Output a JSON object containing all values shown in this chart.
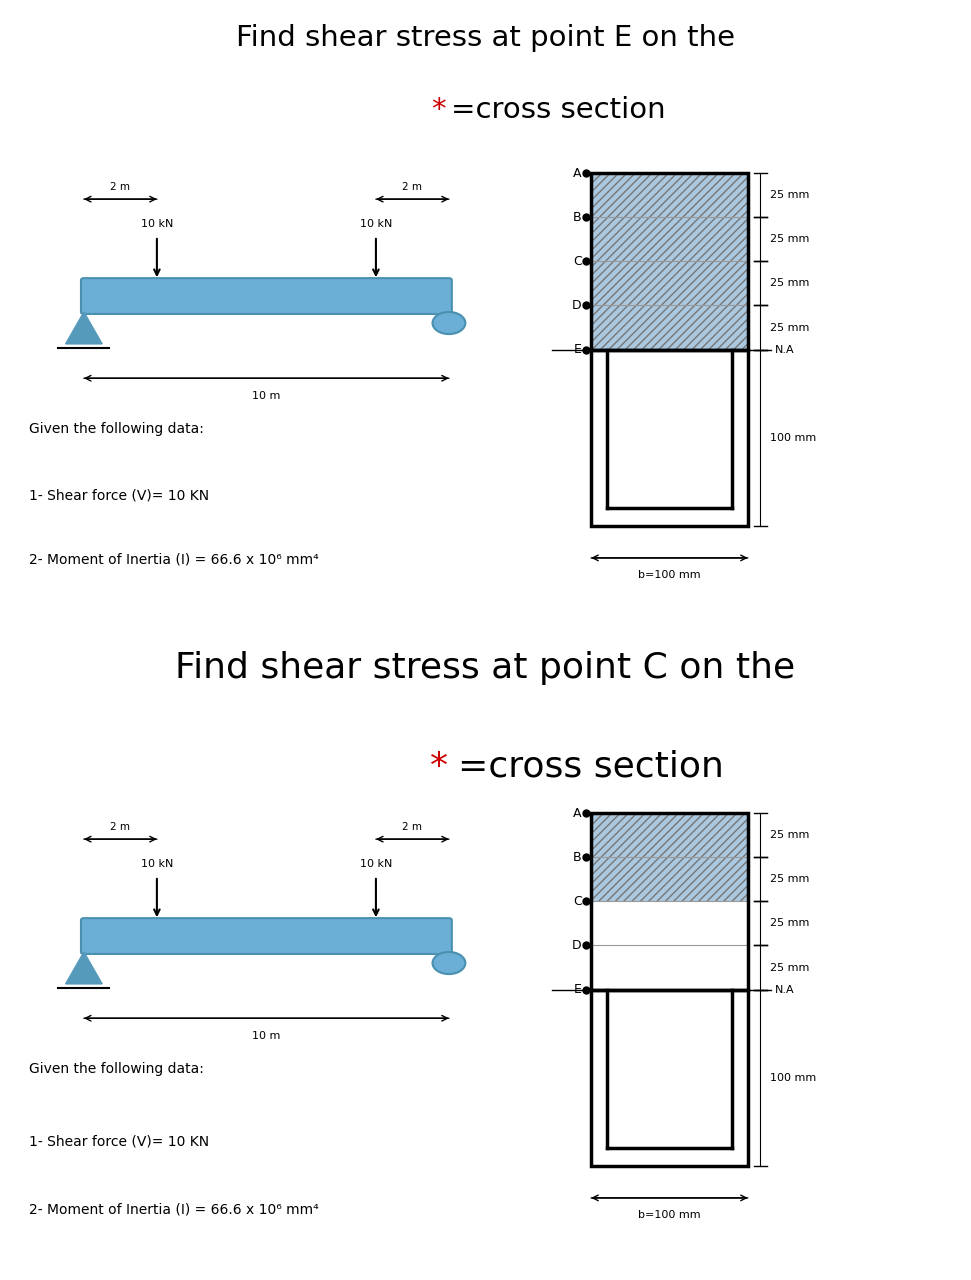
{
  "title1_line1": "Find shear stress at point E on the",
  "title1_star": "*",
  "title1_line2": "=cross section",
  "title2_line1": "Find shear stress at point C on the",
  "title2_star": "*",
  "title2_line2": "=cross section",
  "force1": "10 kN",
  "force2": "10 kN",
  "dim_2m_left": "2 m",
  "dim_2m_right": "2 m",
  "beam_label": "10 m",
  "given_line1": "Given the following data:",
  "given_line2": "1- Shear force (V)= 10 KN",
  "given_line3": "2- Moment of Inertia (I) = 66.6 x 10⁶ mm⁴",
  "dim_25mm": "25 mm",
  "dim_100mm": "100 mm",
  "dim_b100mm": "b=100 mm",
  "NA_label": "N.A",
  "hatch_color": "#aac8e0",
  "hatch_pattern": "////",
  "beam_color": "#6baed6",
  "beam_edge_color": "#4a90b0",
  "triangle_color": "#5599bb",
  "star_color": "#cc0000",
  "bg_color": "#ffffff",
  "title1_fontsize": 21,
  "title2_fontsize": 26,
  "label_fontsize": 9,
  "small_fontsize": 8,
  "given_fontsize": 10
}
